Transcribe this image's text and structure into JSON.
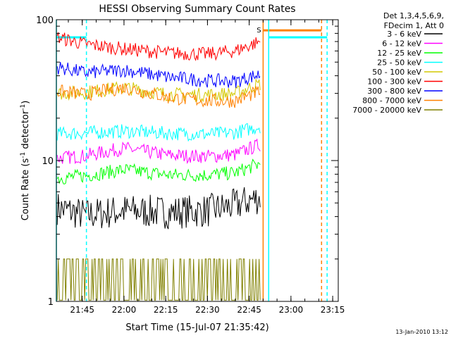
{
  "chart_data": {
    "type": "line",
    "title": "HESSI Observing Summary Count Rates",
    "xlabel": "Start Time (15-Jul-07 21:35:42)",
    "ylabel_main": "Count Rate (s",
    "ylabel_sup1": "-1",
    "ylabel_mid": " detector",
    "ylabel_sup2": "-1",
    "ylabel_end": ")",
    "y_scale": "log",
    "ylim": [
      1,
      100
    ],
    "xlim": [
      "21:35:42",
      "23:17:00"
    ],
    "x_ticks": [
      "21:45",
      "22:00",
      "22:15",
      "22:30",
      "22:45",
      "23:00",
      "23:15"
    ],
    "y_ticks": [
      "1",
      "10",
      "100"
    ],
    "legend_header": [
      "Det 1,3,4,5,6,9,",
      "FDecim 1, Att 0"
    ],
    "legend_position": "top-right-outside",
    "series": [
      {
        "name": "3 - 6 keV",
        "color": "#000000",
        "x": [
          "21:36",
          "21:46",
          "22:00",
          "22:16",
          "22:30",
          "22:40",
          "22:49"
        ],
        "values": [
          4.6,
          4.1,
          4.4,
          4.3,
          4.4,
          4.8,
          5.5
        ]
      },
      {
        "name": "6 - 12 keV",
        "color": "#ff00ff",
        "x": [
          "21:36",
          "21:46",
          "22:00",
          "22:16",
          "22:30",
          "22:40",
          "22:49"
        ],
        "values": [
          10.4,
          10.8,
          12.2,
          10.9,
          10.7,
          11.0,
          13.0
        ]
      },
      {
        "name": "12 - 25 keV",
        "color": "#00ff00",
        "x": [
          "21:36",
          "21:46",
          "22:00",
          "22:16",
          "22:30",
          "22:40",
          "22:49"
        ],
        "values": [
          7.5,
          7.8,
          8.6,
          7.9,
          7.9,
          8.2,
          9.5
        ]
      },
      {
        "name": "25 - 50 keV",
        "color": "#00ffff",
        "x": [
          "21:36",
          "21:46",
          "22:00",
          "22:16",
          "22:30",
          "22:40",
          "22:49"
        ],
        "values": [
          15.5,
          15.7,
          16.2,
          15.6,
          15.4,
          15.8,
          17.5
        ]
      },
      {
        "name": "50 - 100 keV",
        "color": "#d4c800",
        "x": [
          "21:36",
          "21:46",
          "22:00",
          "22:16",
          "22:30",
          "22:40",
          "22:49"
        ],
        "values": [
          30.0,
          30.5,
          33.0,
          29.5,
          29.3,
          30.0,
          35.0
        ]
      },
      {
        "name": "100 - 300 keV",
        "color": "#ff0000",
        "x": [
          "21:36",
          "21:46",
          "22:00",
          "22:16",
          "22:30",
          "22:40",
          "22:49"
        ],
        "values": [
          75.0,
          67.0,
          62.0,
          58.0,
          57.0,
          60.0,
          70.0
        ]
      },
      {
        "name": "300 - 800 keV",
        "color": "#0000ff",
        "x": [
          "21:36",
          "21:46",
          "22:00",
          "22:16",
          "22:30",
          "22:40",
          "22:49"
        ],
        "values": [
          46.0,
          42.0,
          44.0,
          39.0,
          37.0,
          36.5,
          41.0
        ]
      },
      {
        "name": "800 - 7000 keV",
        "color": "#ff8000",
        "x": [
          "21:36",
          "21:46",
          "22:00",
          "22:16",
          "22:30",
          "22:40",
          "22:49"
        ],
        "values": [
          31.0,
          29.5,
          33.0,
          28.0,
          26.5,
          26.5,
          31.0
        ]
      },
      {
        "name": "7000 - 20000 keV",
        "color": "#808000",
        "x": [
          "21:36",
          "21:46",
          "22:00",
          "22:16",
          "22:30",
          "22:40",
          "22:49"
        ],
        "values": [
          1.5,
          1.6,
          1.6,
          1.5,
          1.5,
          1.5,
          1.6
        ]
      }
    ],
    "intervals": [
      {
        "type": "saa-flag",
        "color": "#00ffff",
        "start": "21:35:42",
        "end": "21:46:30",
        "value": 75
      },
      {
        "type": "saa-flag",
        "color": "#ff8000",
        "start": "22:50",
        "end": "23:11",
        "value": 84
      },
      {
        "type": "saa-flag",
        "color": "#00ffff",
        "start": "22:52",
        "end": "23:13",
        "value": 75
      }
    ],
    "vlines": [
      {
        "x": "21:35:42",
        "color": "#00ffff",
        "style": "solid"
      },
      {
        "x": "21:46:30",
        "color": "#00ffff",
        "style": "dashed"
      },
      {
        "x": "22:50",
        "color": "#ff8000",
        "style": "solid"
      },
      {
        "x": "22:52",
        "color": "#00ffff",
        "style": "solid"
      },
      {
        "x": "23:11",
        "color": "#ff8000",
        "style": "dashed"
      },
      {
        "x": "23:13",
        "color": "#00ffff",
        "style": "dashed"
      }
    ],
    "annotation": {
      "text": "S",
      "x": "22:49",
      "value": 85,
      "color": "#ff8000"
    },
    "timestamp": "13-Jan-2010 13:12"
  }
}
